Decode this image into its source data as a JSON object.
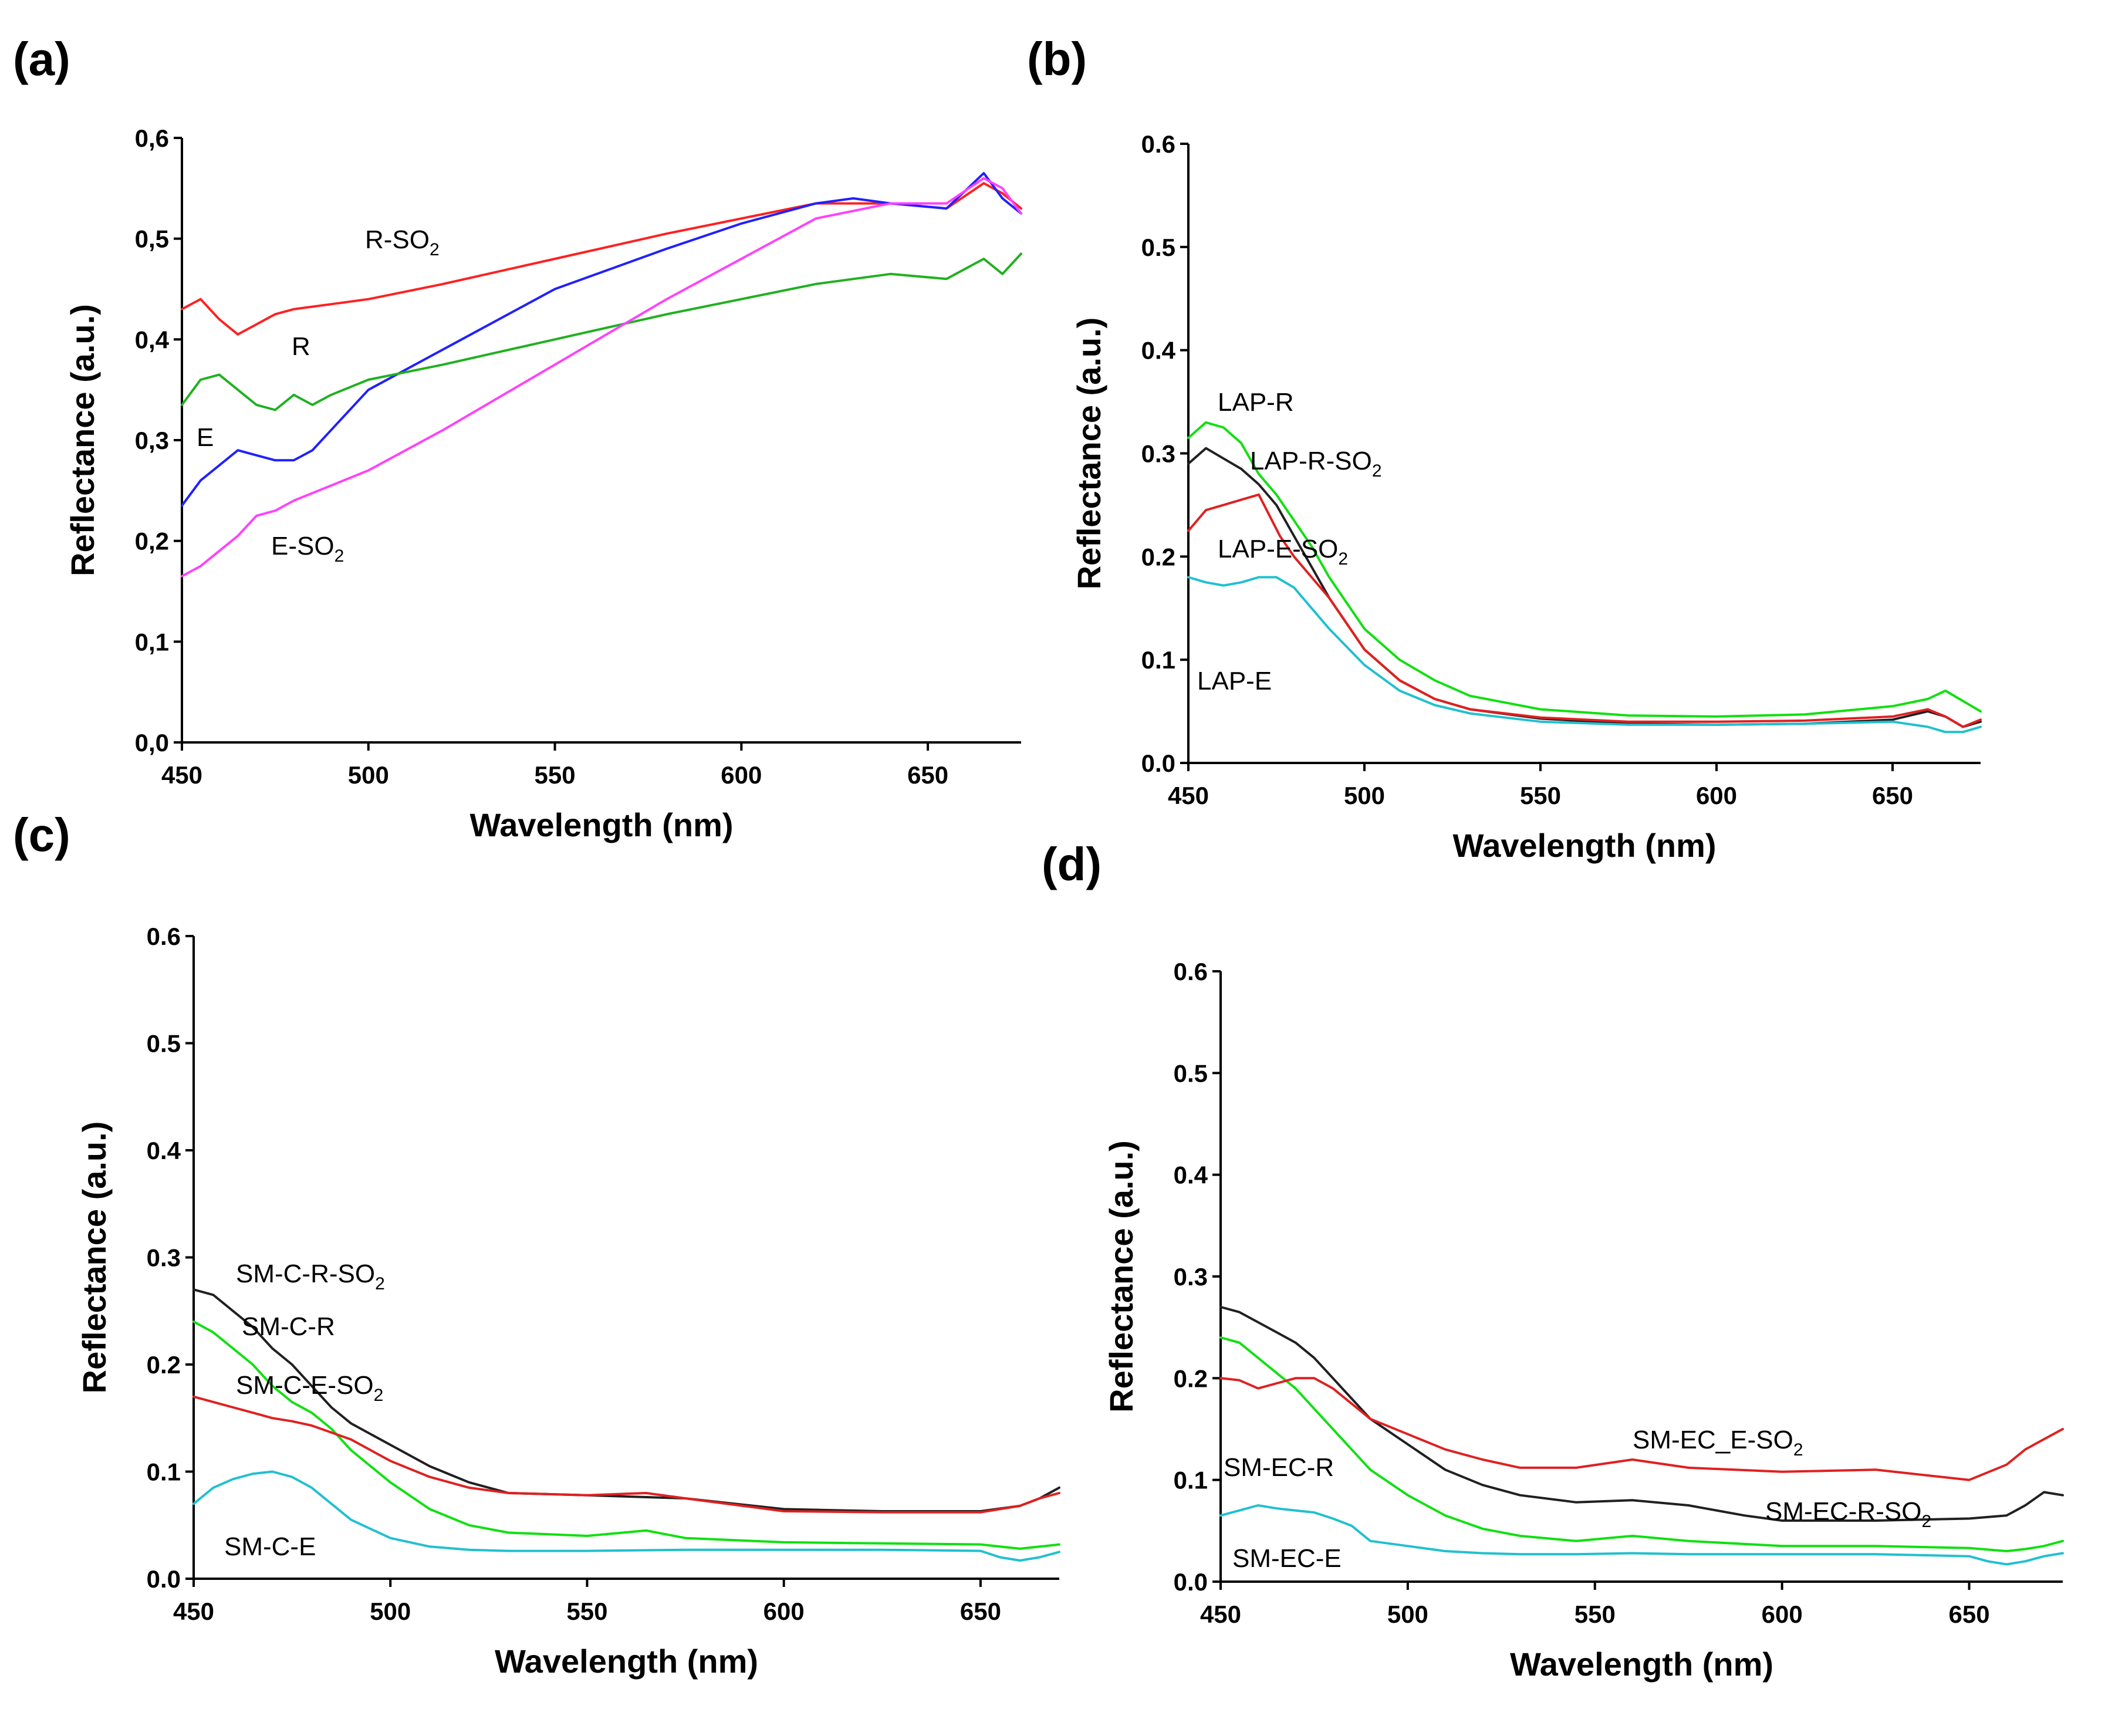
{
  "chart_data": [
    {
      "panel": "(a)",
      "type": "line",
      "xlabel": "Wavelength (nm)",
      "ylabel": "Reflectance (a.u.)",
      "xlim": [
        450,
        675
      ],
      "ylim": [
        0.0,
        0.6
      ],
      "xticks": [
        "450",
        "500",
        "550",
        "600",
        "650"
      ],
      "yticks": [
        "0,0",
        "0,1",
        "0,2",
        "0,3",
        "0,4",
        "0,5",
        "0,6"
      ],
      "series": [
        {
          "name": "R-SO2",
          "label": "R-SO",
          "sub": "2",
          "color": "#ff2020",
          "x": [
            450,
            455,
            460,
            465,
            470,
            475,
            480,
            490,
            500,
            520,
            550,
            580,
            600,
            620,
            640,
            655,
            665,
            670,
            675
          ],
          "y": [
            0.43,
            0.44,
            0.42,
            0.405,
            0.415,
            0.425,
            0.43,
            0.435,
            0.44,
            0.455,
            0.48,
            0.505,
            0.52,
            0.535,
            0.535,
            0.53,
            0.555,
            0.545,
            0.53
          ]
        },
        {
          "name": "R",
          "label": "R",
          "sub": "",
          "color": "#2020ff",
          "x": [
            450,
            455,
            460,
            465,
            470,
            475,
            480,
            485,
            490,
            500,
            520,
            550,
            580,
            600,
            620,
            630,
            640,
            655,
            665,
            670,
            675
          ],
          "y": [
            0.235,
            0.26,
            0.275,
            0.29,
            0.285,
            0.28,
            0.28,
            0.29,
            0.31,
            0.35,
            0.39,
            0.45,
            0.49,
            0.515,
            0.535,
            0.54,
            0.535,
            0.53,
            0.565,
            0.54,
            0.525
          ]
        },
        {
          "name": "E",
          "label": "E",
          "sub": "",
          "color": "#20b020",
          "x": [
            450,
            455,
            460,
            465,
            470,
            475,
            480,
            485,
            490,
            500,
            520,
            550,
            580,
            600,
            620,
            640,
            655,
            665,
            670,
            675
          ],
          "y": [
            0.335,
            0.36,
            0.365,
            0.35,
            0.335,
            0.33,
            0.345,
            0.335,
            0.345,
            0.36,
            0.375,
            0.4,
            0.425,
            0.44,
            0.455,
            0.465,
            0.46,
            0.48,
            0.465,
            0.485
          ]
        },
        {
          "name": "E-SO2",
          "label": "E-SO",
          "sub": "2",
          "color": "#ff40ff",
          "x": [
            450,
            455,
            460,
            465,
            470,
            475,
            480,
            490,
            500,
            520,
            550,
            580,
            600,
            620,
            640,
            655,
            665,
            670,
            675
          ],
          "y": [
            0.165,
            0.175,
            0.19,
            0.205,
            0.225,
            0.23,
            0.24,
            0.255,
            0.27,
            0.31,
            0.375,
            0.44,
            0.48,
            0.52,
            0.535,
            0.535,
            0.56,
            0.55,
            0.525
          ]
        }
      ],
      "annotations": [
        {
          "text": "R-SO",
          "sub": "2",
          "series": "R-SO2"
        },
        {
          "text": "R",
          "sub": "",
          "series": "R"
        },
        {
          "text": "E",
          "sub": "",
          "series": "E"
        },
        {
          "text": "E-SO",
          "sub": "2",
          "series": "E-SO2"
        }
      ]
    },
    {
      "panel": "(b)",
      "type": "line",
      "xlabel": "Wavelength (nm)",
      "ylabel": "Reflectance (a.u.)",
      "xlim": [
        450,
        675
      ],
      "ylim": [
        0.0,
        0.6
      ],
      "xticks": [
        "450",
        "500",
        "550",
        "600",
        "650"
      ],
      "yticks": [
        "0.0",
        "0.1",
        "0.2",
        "0.3",
        "0.4",
        "0.5",
        "0.6"
      ],
      "series": [
        {
          "name": "LAP-R",
          "color": "#10e010",
          "x": [
            450,
            455,
            460,
            465,
            470,
            475,
            480,
            485,
            490,
            500,
            510,
            520,
            530,
            550,
            575,
            600,
            625,
            650,
            660,
            665,
            670,
            675
          ],
          "y": [
            0.315,
            0.33,
            0.325,
            0.31,
            0.28,
            0.26,
            0.235,
            0.21,
            0.18,
            0.13,
            0.1,
            0.08,
            0.065,
            0.052,
            0.046,
            0.045,
            0.047,
            0.055,
            0.062,
            0.07,
            0.06,
            0.05
          ]
        },
        {
          "name": "LAP-R-SO2",
          "color": "#202020",
          "x": [
            450,
            455,
            460,
            465,
            470,
            475,
            480,
            485,
            490,
            500,
            510,
            520,
            530,
            550,
            575,
            600,
            625,
            650,
            660,
            665,
            670,
            675
          ],
          "y": [
            0.29,
            0.305,
            0.295,
            0.285,
            0.27,
            0.25,
            0.22,
            0.19,
            0.16,
            0.11,
            0.08,
            0.062,
            0.052,
            0.043,
            0.038,
            0.037,
            0.038,
            0.042,
            0.05,
            0.045,
            0.035,
            0.04
          ]
        },
        {
          "name": "LAP-E-SO2",
          "color": "#e02020",
          "x": [
            450,
            455,
            460,
            465,
            470,
            473,
            476,
            480,
            485,
            490,
            500,
            510,
            520,
            530,
            550,
            575,
            600,
            625,
            650,
            660,
            665,
            670,
            675
          ],
          "y": [
            0.225,
            0.245,
            0.25,
            0.255,
            0.26,
            0.24,
            0.22,
            0.2,
            0.18,
            0.16,
            0.11,
            0.08,
            0.062,
            0.052,
            0.044,
            0.04,
            0.04,
            0.041,
            0.045,
            0.052,
            0.045,
            0.035,
            0.042
          ]
        },
        {
          "name": "LAP-E",
          "color": "#20c0d0",
          "x": [
            450,
            455,
            460,
            465,
            470,
            475,
            480,
            485,
            490,
            500,
            510,
            520,
            530,
            550,
            575,
            600,
            625,
            650,
            660,
            665,
            670,
            675
          ],
          "y": [
            0.18,
            0.175,
            0.172,
            0.175,
            0.18,
            0.18,
            0.17,
            0.15,
            0.13,
            0.095,
            0.07,
            0.056,
            0.048,
            0.04,
            0.037,
            0.037,
            0.038,
            0.04,
            0.035,
            0.03,
            0.03,
            0.035
          ]
        }
      ],
      "annotations": [
        {
          "text": "LAP-R",
          "sub": "",
          "series": "LAP-R"
        },
        {
          "text": "LAP-R-SO",
          "sub": "2",
          "series": "LAP-R-SO2"
        },
        {
          "text": "LAP-E-SO",
          "sub": "2",
          "series": "LAP-E-SO2"
        },
        {
          "text": "LAP-E",
          "sub": "",
          "series": "LAP-E"
        }
      ]
    },
    {
      "panel": "(c)",
      "type": "line",
      "xlabel": "Wavelength (nm)",
      "ylabel": "Reflectance (a.u.)",
      "xlim": [
        450,
        670
      ],
      "ylim": [
        0.0,
        0.6
      ],
      "xticks": [
        "450",
        "500",
        "550",
        "600",
        "650"
      ],
      "yticks": [
        "0.0",
        "0.1",
        "0.2",
        "0.3",
        "0.4",
        "0.5",
        "0.6"
      ],
      "series": [
        {
          "name": "SM-C-R-SO2",
          "color": "#202020",
          "x": [
            450,
            455,
            460,
            465,
            470,
            475,
            480,
            485,
            490,
            500,
            510,
            520,
            530,
            550,
            575,
            600,
            625,
            650,
            660,
            665,
            670
          ],
          "y": [
            0.27,
            0.265,
            0.25,
            0.235,
            0.215,
            0.2,
            0.18,
            0.16,
            0.145,
            0.125,
            0.105,
            0.09,
            0.08,
            0.078,
            0.075,
            0.065,
            0.063,
            0.063,
            0.068,
            0.075,
            0.085
          ]
        },
        {
          "name": "SM-C-R",
          "color": "#10e010",
          "x": [
            450,
            455,
            460,
            465,
            470,
            475,
            480,
            485,
            490,
            500,
            510,
            520,
            530,
            550,
            565,
            575,
            600,
            625,
            650,
            660,
            665,
            670
          ],
          "y": [
            0.24,
            0.23,
            0.215,
            0.2,
            0.18,
            0.165,
            0.155,
            0.14,
            0.12,
            0.09,
            0.065,
            0.05,
            0.043,
            0.04,
            0.045,
            0.038,
            0.034,
            0.033,
            0.032,
            0.028,
            0.03,
            0.032
          ]
        },
        {
          "name": "SM-C-E-SO2",
          "color": "#e02020",
          "x": [
            450,
            455,
            460,
            465,
            470,
            475,
            480,
            490,
            500,
            510,
            520,
            530,
            550,
            565,
            575,
            600,
            625,
            650,
            660,
            665,
            670
          ],
          "y": [
            0.17,
            0.165,
            0.16,
            0.155,
            0.15,
            0.147,
            0.143,
            0.13,
            0.11,
            0.095,
            0.085,
            0.08,
            0.078,
            0.08,
            0.075,
            0.063,
            0.062,
            0.062,
            0.068,
            0.075,
            0.08
          ]
        },
        {
          "name": "SM-C-E",
          "color": "#20c0d0",
          "x": [
            450,
            455,
            460,
            465,
            470,
            475,
            480,
            485,
            490,
            500,
            510,
            520,
            530,
            550,
            575,
            600,
            625,
            650,
            655,
            660,
            665,
            670
          ],
          "y": [
            0.07,
            0.085,
            0.093,
            0.098,
            0.1,
            0.095,
            0.085,
            0.07,
            0.055,
            0.038,
            0.03,
            0.027,
            0.026,
            0.026,
            0.027,
            0.027,
            0.027,
            0.026,
            0.02,
            0.017,
            0.02,
            0.025
          ]
        }
      ],
      "annotations": [
        {
          "text": "SM-C-R-SO",
          "sub": "2",
          "series": "SM-C-R-SO2"
        },
        {
          "text": "SM-C-R",
          "sub": "",
          "series": "SM-C-R"
        },
        {
          "text": "SM-C-E-SO",
          "sub": "2",
          "series": "SM-C-E-SO2"
        },
        {
          "text": "SM-C-E",
          "sub": "",
          "series": "SM-C-E"
        }
      ]
    },
    {
      "panel": "(d)",
      "type": "line",
      "xlabel": "Wavelength (nm)",
      "ylabel": "Reflectance (a.u.)",
      "xlim": [
        450,
        675
      ],
      "ylim": [
        0.0,
        0.6
      ],
      "xticks": [
        "450",
        "500",
        "550",
        "600",
        "650"
      ],
      "yticks": [
        "0.0",
        "0.1",
        "0.2",
        "0.3",
        "0.4",
        "0.5",
        "0.6"
      ],
      "series": [
        {
          "name": "SM-EC-R-SO2",
          "color": "#202020",
          "x": [
            450,
            455,
            460,
            465,
            470,
            475,
            480,
            485,
            490,
            500,
            510,
            520,
            530,
            545,
            560,
            575,
            590,
            600,
            625,
            650,
            660,
            665,
            670,
            675
          ],
          "y": [
            0.27,
            0.265,
            0.255,
            0.245,
            0.235,
            0.22,
            0.2,
            0.18,
            0.16,
            0.135,
            0.11,
            0.095,
            0.085,
            0.078,
            0.08,
            0.075,
            0.065,
            0.06,
            0.06,
            0.062,
            0.065,
            0.075,
            0.088,
            0.085
          ]
        },
        {
          "name": "SM-EC-R",
          "color": "#10e010",
          "x": [
            450,
            455,
            460,
            465,
            470,
            475,
            480,
            485,
            490,
            500,
            510,
            520,
            530,
            545,
            560,
            575,
            600,
            625,
            650,
            660,
            665,
            670,
            675
          ],
          "y": [
            0.24,
            0.235,
            0.22,
            0.205,
            0.19,
            0.17,
            0.15,
            0.13,
            0.11,
            0.085,
            0.065,
            0.052,
            0.045,
            0.04,
            0.045,
            0.04,
            0.035,
            0.035,
            0.033,
            0.03,
            0.032,
            0.035,
            0.04
          ]
        },
        {
          "name": "SM-EC_E-SO2",
          "color": "#e02020",
          "x": [
            450,
            455,
            460,
            465,
            470,
            475,
            480,
            485,
            490,
            500,
            510,
            520,
            530,
            545,
            560,
            575,
            600,
            625,
            650,
            660,
            665,
            670,
            675
          ],
          "y": [
            0.2,
            0.198,
            0.19,
            0.195,
            0.2,
            0.2,
            0.19,
            0.175,
            0.16,
            0.145,
            0.13,
            0.12,
            0.112,
            0.112,
            0.12,
            0.112,
            0.108,
            0.11,
            0.1,
            0.115,
            0.13,
            0.14,
            0.15
          ]
        },
        {
          "name": "SM-EC-E",
          "color": "#20c0d0",
          "x": [
            450,
            455,
            460,
            465,
            470,
            475,
            480,
            485,
            490,
            500,
            510,
            520,
            530,
            545,
            560,
            575,
            600,
            625,
            650,
            655,
            660,
            665,
            670,
            675
          ],
          "y": [
            0.065,
            0.07,
            0.075,
            0.072,
            0.07,
            0.068,
            0.062,
            0.055,
            0.04,
            0.035,
            0.03,
            0.028,
            0.027,
            0.027,
            0.028,
            0.027,
            0.027,
            0.027,
            0.025,
            0.02,
            0.017,
            0.02,
            0.025,
            0.028
          ]
        }
      ],
      "annotations": [
        {
          "text": "SM-EC_E-SO",
          "sub": "2",
          "series": "SM-EC_E-SO2"
        },
        {
          "text": "SM-EC-R",
          "sub": "",
          "series": "SM-EC-R"
        },
        {
          "text": "SM-EC-R-SO",
          "sub": "2",
          "series": "SM-EC-R-SO2"
        },
        {
          "text": "SM-EC-E",
          "sub": "",
          "series": "SM-EC-E"
        }
      ]
    }
  ]
}
